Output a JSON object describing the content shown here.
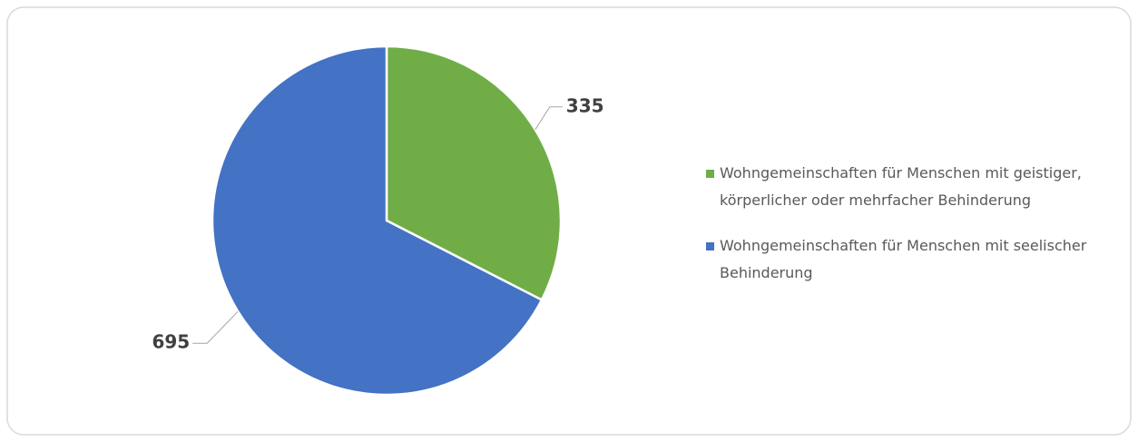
{
  "chart_data": {
    "type": "pie",
    "categories": [
      "Wohngemeinschaften für Menschen mit geistiger, körperlicher oder mehrfacher Behinderung",
      "Wohngemeinschaften für Menschen mit seelischer Behinderung"
    ],
    "values": [
      335,
      695
    ],
    "colors": [
      "#70ad47",
      "#4472c4"
    ],
    "legend": "right"
  }
}
